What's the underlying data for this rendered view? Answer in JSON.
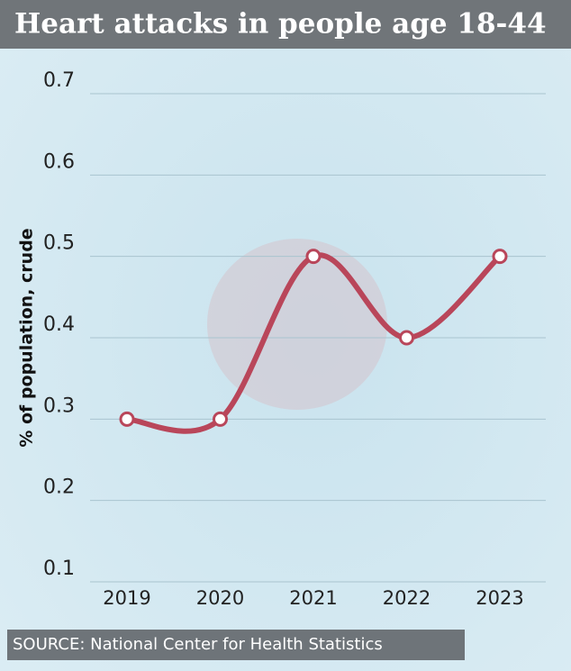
{
  "chart_data": {
    "type": "line",
    "title": "Heart attacks in people age 18-44",
    "y_label": "% of population, crude",
    "categories": [
      "2019",
      "2020",
      "2021",
      "2022",
      "2023"
    ],
    "series": [
      {
        "name": "Heart attacks",
        "color": "#b9465a",
        "values": [
          0.3,
          0.3,
          0.5,
          0.4,
          0.5
        ]
      }
    ],
    "ylim": [
      0.1,
      0.7
    ],
    "yticks": [
      0.1,
      0.2,
      0.3,
      0.4,
      0.5,
      0.6,
      0.7
    ],
    "grid": true,
    "source": "SOURCE: National Center for Health Statistics"
  }
}
